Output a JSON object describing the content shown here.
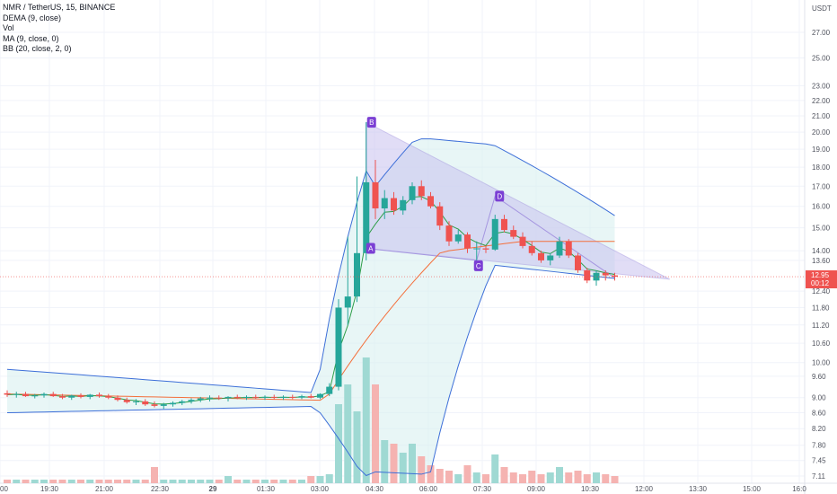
{
  "legend": {
    "symbol": "NMR / TetherUS, 15, BINANCE",
    "dema": "DEMA (9, close)",
    "vol": "Vol",
    "ma": "MA (9, close, 0)",
    "bb": "BB (20, close, 2, 0)"
  },
  "price_axis": {
    "currency": "USDT",
    "ticks": [
      "27.00",
      "25.00",
      "23.00",
      "22.00",
      "21.00",
      "20.00",
      "19.00",
      "18.00",
      "17.00",
      "16.00",
      "15.00",
      "14.00",
      "13.60",
      "12.40",
      "11.80",
      "11.20",
      "10.60",
      "10.00",
      "9.60",
      "9.00",
      "8.60",
      "8.20",
      "7.80",
      "7.45",
      "7.11"
    ],
    "last_price": "12.95",
    "countdown": "00:12"
  },
  "time_axis": {
    "ticks": [
      "00",
      "19:30",
      "21:00",
      "22:30",
      "29",
      "01:30",
      "03:00",
      "04:30",
      "06:00",
      "07:30",
      "09:00",
      "10:30",
      "12:00",
      "13:30",
      "15:00",
      "16:0"
    ]
  },
  "pattern_labels": [
    "B",
    "A",
    "C",
    "D"
  ],
  "colors": {
    "up": "#26a69a",
    "down": "#ef5350",
    "bb_band": "#3d6fd8",
    "bb_fill": "#d8f0f0",
    "dema": "#2e9e48",
    "ma": "#f4703c",
    "pattern_fill": "#c9c2f0",
    "pattern_line": "#a596e0",
    "label_bg": "#7b3fd4",
    "price_tag": "#ef5350"
  },
  "chart_data": {
    "type": "candlestick",
    "title": "NMR / TetherUS, 15, BINANCE",
    "interval": "15",
    "ylim": [
      7.11,
      27.0
    ],
    "y_scale": "log",
    "candles": [
      {
        "t": "18:45",
        "o": 9.12,
        "h": 9.2,
        "l": 9.02,
        "c": 9.08,
        "v": 10
      },
      {
        "t": "19:00",
        "o": 9.08,
        "h": 9.16,
        "l": 9.0,
        "c": 9.1,
        "v": 10
      },
      {
        "t": "19:15",
        "o": 9.1,
        "h": 9.16,
        "l": 9.02,
        "c": 9.04,
        "v": 10
      },
      {
        "t": "19:30",
        "o": 9.04,
        "h": 9.1,
        "l": 8.98,
        "c": 9.06,
        "v": 10
      },
      {
        "t": "19:45",
        "o": 9.06,
        "h": 9.14,
        "l": 9.0,
        "c": 9.1,
        "v": 10
      },
      {
        "t": "20:00",
        "o": 9.1,
        "h": 9.16,
        "l": 9.02,
        "c": 9.04,
        "v": 10
      },
      {
        "t": "20:15",
        "o": 9.04,
        "h": 9.1,
        "l": 8.96,
        "c": 9.0,
        "v": 10
      },
      {
        "t": "20:30",
        "o": 9.0,
        "h": 9.08,
        "l": 8.94,
        "c": 9.06,
        "v": 10
      },
      {
        "t": "20:45",
        "o": 9.06,
        "h": 9.12,
        "l": 8.98,
        "c": 9.02,
        "v": 10
      },
      {
        "t": "21:00",
        "o": 9.02,
        "h": 9.1,
        "l": 8.96,
        "c": 9.08,
        "v": 10
      },
      {
        "t": "21:15",
        "o": 9.08,
        "h": 9.14,
        "l": 9.0,
        "c": 9.04,
        "v": 10
      },
      {
        "t": "21:30",
        "o": 9.04,
        "h": 9.1,
        "l": 8.96,
        "c": 9.0,
        "v": 10
      },
      {
        "t": "21:45",
        "o": 9.0,
        "h": 9.06,
        "l": 8.9,
        "c": 8.94,
        "v": 10
      },
      {
        "t": "22:00",
        "o": 8.94,
        "h": 9.0,
        "l": 8.84,
        "c": 8.88,
        "v": 10
      },
      {
        "t": "22:15",
        "o": 8.88,
        "h": 8.96,
        "l": 8.8,
        "c": 8.9,
        "v": 10
      },
      {
        "t": "22:30",
        "o": 8.9,
        "h": 8.96,
        "l": 8.78,
        "c": 8.82,
        "v": 10
      },
      {
        "t": "22:45",
        "o": 8.82,
        "h": 8.9,
        "l": 8.74,
        "c": 8.78,
        "v": 10
      },
      {
        "t": "23:00",
        "o": 8.78,
        "h": 8.86,
        "l": 8.7,
        "c": 8.82,
        "v": 10
      },
      {
        "t": "23:15",
        "o": 8.82,
        "h": 8.9,
        "l": 8.76,
        "c": 8.86,
        "v": 10
      },
      {
        "t": "23:30",
        "o": 8.86,
        "h": 8.94,
        "l": 8.8,
        "c": 8.9,
        "v": 10
      },
      {
        "t": "23:45",
        "o": 8.9,
        "h": 8.98,
        "l": 8.84,
        "c": 8.94,
        "v": 10
      },
      {
        "t": "00:00",
        "o": 8.94,
        "h": 9.02,
        "l": 8.88,
        "c": 8.98,
        "v": 10
      },
      {
        "t": "00:15",
        "o": 8.98,
        "h": 9.06,
        "l": 8.9,
        "c": 9.0,
        "v": 10
      },
      {
        "t": "00:30",
        "o": 9.0,
        "h": 9.06,
        "l": 8.94,
        "c": 8.98,
        "v": 10
      },
      {
        "t": "00:45",
        "o": 8.98,
        "h": 9.04,
        "l": 8.9,
        "c": 9.02,
        "v": 10
      },
      {
        "t": "01:00",
        "o": 9.02,
        "h": 9.08,
        "l": 8.96,
        "c": 9.0,
        "v": 10
      },
      {
        "t": "01:15",
        "o": 9.0,
        "h": 9.06,
        "l": 8.94,
        "c": 9.02,
        "v": 10
      },
      {
        "t": "01:30",
        "o": 9.02,
        "h": 9.08,
        "l": 8.96,
        "c": 9.0,
        "v": 10
      },
      {
        "t": "01:45",
        "o": 9.0,
        "h": 9.06,
        "l": 8.94,
        "c": 9.02,
        "v": 10
      },
      {
        "t": "02:00",
        "o": 9.02,
        "h": 9.08,
        "l": 8.96,
        "c": 9.0,
        "v": 10
      },
      {
        "t": "02:15",
        "o": 9.0,
        "h": 9.06,
        "l": 8.94,
        "c": 9.02,
        "v": 10
      },
      {
        "t": "02:30",
        "o": 9.02,
        "h": 9.08,
        "l": 8.96,
        "c": 9.0,
        "v": 10
      },
      {
        "t": "02:45",
        "o": 9.0,
        "h": 9.08,
        "l": 8.96,
        "c": 9.04,
        "v": 10
      },
      {
        "t": "03:00",
        "o": 9.04,
        "h": 9.1,
        "l": 8.98,
        "c": 9.0,
        "v": 10
      },
      {
        "t": "03:15",
        "o": 9.0,
        "h": 9.12,
        "l": 8.96,
        "c": 9.1,
        "v": 10
      },
      {
        "t": "03:30",
        "o": 9.1,
        "h": 9.4,
        "l": 9.04,
        "c": 9.3,
        "v": 10
      },
      {
        "t": "03:45",
        "o": 9.3,
        "h": 12.1,
        "l": 9.2,
        "c": 11.8,
        "v": 10
      },
      {
        "t": "04:00",
        "o": 11.8,
        "h": 14.6,
        "l": 11.2,
        "c": 12.2,
        "v": 10
      },
      {
        "t": "04:15",
        "o": 12.2,
        "h": 17.5,
        "l": 12.0,
        "c": 13.9,
        "v": 10
      },
      {
        "t": "04:30",
        "o": 13.9,
        "h": 20.6,
        "l": 13.6,
        "c": 17.2,
        "v": 10
      },
      {
        "t": "04:45",
        "o": 17.2,
        "h": 18.4,
        "l": 15.4,
        "c": 15.9,
        "v": 10
      },
      {
        "t": "05:00",
        "o": 15.9,
        "h": 16.8,
        "l": 15.4,
        "c": 16.4,
        "v": 10
      },
      {
        "t": "05:15",
        "o": 16.4,
        "h": 16.7,
        "l": 15.6,
        "c": 15.8,
        "v": 10
      },
      {
        "t": "05:30",
        "o": 15.8,
        "h": 16.5,
        "l": 15.6,
        "c": 16.3,
        "v": 10
      },
      {
        "t": "05:45",
        "o": 16.3,
        "h": 17.2,
        "l": 16.1,
        "c": 17.0,
        "v": 10
      },
      {
        "t": "06:00",
        "o": 17.0,
        "h": 17.3,
        "l": 16.3,
        "c": 16.5,
        "v": 10
      },
      {
        "t": "06:15",
        "o": 16.5,
        "h": 16.7,
        "l": 15.9,
        "c": 16.0,
        "v": 10
      },
      {
        "t": "06:30",
        "o": 16.0,
        "h": 16.2,
        "l": 14.9,
        "c": 15.1,
        "v": 10
      },
      {
        "t": "06:45",
        "o": 15.1,
        "h": 15.3,
        "l": 14.2,
        "c": 14.4,
        "v": 10
      },
      {
        "t": "07:00",
        "o": 14.4,
        "h": 14.9,
        "l": 14.3,
        "c": 14.7,
        "v": 10
      },
      {
        "t": "07:15",
        "o": 14.7,
        "h": 14.8,
        "l": 13.9,
        "c": 14.1,
        "v": 10
      },
      {
        "t": "07:30",
        "o": 14.1,
        "h": 14.4,
        "l": 13.6,
        "c": 14.1,
        "v": 10
      },
      {
        "t": "07:45",
        "o": 14.1,
        "h": 14.2,
        "l": 13.9,
        "c": 14.05,
        "v": 10
      },
      {
        "t": "08:00",
        "o": 14.05,
        "h": 15.6,
        "l": 14.0,
        "c": 15.4,
        "v": 10
      },
      {
        "t": "08:15",
        "o": 15.4,
        "h": 15.6,
        "l": 14.8,
        "c": 14.9,
        "v": 10
      },
      {
        "t": "08:30",
        "o": 14.9,
        "h": 15.1,
        "l": 14.5,
        "c": 14.6,
        "v": 10
      },
      {
        "t": "08:45",
        "o": 14.6,
        "h": 14.8,
        "l": 14.1,
        "c": 14.2,
        "v": 10
      },
      {
        "t": "09:00",
        "o": 14.2,
        "h": 14.4,
        "l": 13.8,
        "c": 13.9,
        "v": 10
      },
      {
        "t": "09:15",
        "o": 13.9,
        "h": 14.0,
        "l": 13.5,
        "c": 13.6,
        "v": 10
      },
      {
        "t": "09:30",
        "o": 13.6,
        "h": 13.9,
        "l": 13.4,
        "c": 13.8,
        "v": 10
      },
      {
        "t": "09:45",
        "o": 13.8,
        "h": 14.6,
        "l": 13.7,
        "c": 14.4,
        "v": 10
      },
      {
        "t": "10:00",
        "o": 14.4,
        "h": 14.5,
        "l": 13.7,
        "c": 13.8,
        "v": 10
      },
      {
        "t": "10:15",
        "o": 13.8,
        "h": 13.9,
        "l": 13.1,
        "c": 13.2,
        "v": 10
      },
      {
        "t": "10:30",
        "o": 13.2,
        "h": 13.3,
        "l": 12.7,
        "c": 12.8,
        "v": 10
      },
      {
        "t": "10:45",
        "o": 12.8,
        "h": 13.2,
        "l": 12.6,
        "c": 13.1,
        "v": 10
      },
      {
        "t": "11:00",
        "o": 13.1,
        "h": 13.2,
        "l": 12.8,
        "c": 13.0,
        "v": 10
      },
      {
        "t": "11:15",
        "o": 13.0,
        "h": 13.1,
        "l": 12.8,
        "c": 12.95,
        "v": 10
      }
    ],
    "volume_note": "volume bars drawn proportional to the histogram under the price chart"
  }
}
